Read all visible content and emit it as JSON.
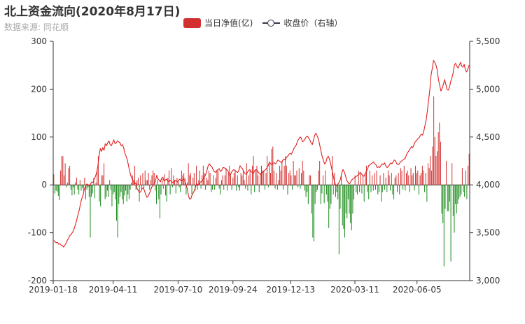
{
  "chart_data": {
    "type": "bar",
    "title": "北上资金流向(2020年8月17日)",
    "subtitle": "数据来源: 同花顺",
    "x_range": [
      "2019-01-18",
      "2020-08-17"
    ],
    "x_tick_labels": [
      "2019-01-18",
      "2019-04-11",
      "2019-07-10",
      "2019-09-24",
      "2019-12-13",
      "2020-03-11",
      "2020-06-05"
    ],
    "y_left": {
      "min": -200,
      "max": 300,
      "ticks": [
        "300",
        "200",
        "100",
        "0",
        "-100",
        "-200"
      ]
    },
    "y_right": {
      "min": 3000,
      "max": 5500,
      "ticks": [
        "5,500",
        "5,000",
        "4,500",
        "4,000",
        "3,500",
        "3,000"
      ]
    },
    "series": [
      {
        "name": "当日净值(亿)",
        "type": "bar",
        "positive_color": "#d32f2f",
        "negative_color": "#1a8a1a",
        "values": [
          22,
          -18,
          -12,
          -14,
          -23,
          -32,
          30,
          60,
          60,
          20,
          45,
          -5,
          5,
          35,
          40,
          -10,
          -22,
          -5,
          -20,
          5,
          15,
          -10,
          -20,
          10,
          -12,
          -6,
          -12,
          15,
          -30,
          -10,
          -5,
          -25,
          -110,
          -25,
          -18,
          15,
          -28,
          5,
          30,
          60,
          -35,
          -45,
          20,
          20,
          45,
          -30,
          -25,
          -12,
          -25,
          10,
          -10,
          -45,
          -20,
          -15,
          -30,
          -75,
          -110,
          -40,
          -25,
          -15,
          -30,
          -40,
          -22,
          -12,
          -35,
          -20,
          -30,
          -10,
          5,
          20,
          10,
          40,
          -10,
          10,
          15,
          -35,
          20,
          -10,
          25,
          -8,
          30,
          10,
          10,
          25,
          -10,
          10,
          20,
          30,
          25,
          -12,
          -40,
          10,
          -30,
          -70,
          -20,
          12,
          -8,
          22,
          -22,
          -35,
          15,
          30,
          -20,
          35,
          -5,
          20,
          10,
          -18,
          15,
          10,
          -5,
          -15,
          30,
          20,
          25,
          15,
          -20,
          5,
          45,
          20,
          25,
          -20,
          15,
          25,
          -12,
          40,
          -10,
          10,
          30,
          -8,
          20,
          40,
          25,
          -10,
          15,
          10,
          30,
          25,
          -15,
          -10,
          20,
          -10,
          15,
          30,
          30,
          -8,
          -20,
          10,
          20,
          -10,
          20,
          35,
          -12,
          25,
          40,
          20,
          -10,
          15,
          25,
          30,
          -12,
          20,
          -5,
          -12,
          25,
          20,
          30,
          10,
          -8,
          45,
          -12,
          20,
          30,
          -20,
          40,
          60,
          -15,
          30,
          40,
          20,
          -15,
          25,
          40,
          30,
          30,
          -10,
          25,
          60,
          -5,
          45,
          25,
          75,
          80,
          30,
          -8,
          25,
          -10,
          10,
          40,
          30,
          50,
          -10,
          40,
          60,
          40,
          -20,
          25,
          30,
          20,
          -10,
          50,
          20,
          20,
          30,
          -5,
          35,
          -8,
          25,
          50,
          30,
          -12,
          -25,
          -15,
          -40,
          20,
          20,
          -60,
          -110,
          -118,
          -40,
          -15,
          -10,
          30,
          50,
          -40,
          -18,
          20,
          -38,
          30,
          -20,
          -35,
          -90,
          -50,
          -40,
          60,
          -20,
          25,
          -25,
          -15,
          -30,
          -145,
          -50,
          20,
          -85,
          -92,
          -110,
          -60,
          -70,
          -30,
          -60,
          -80,
          -95,
          -60,
          -30,
          20,
          -15,
          -20,
          30,
          -15,
          25,
          -18,
          20,
          -35,
          25,
          40,
          -15,
          -30,
          30,
          -15,
          20,
          -12,
          25,
          -10,
          30,
          -20,
          -15,
          20,
          -35,
          -15,
          25,
          -10,
          15,
          -15,
          30,
          20,
          -12,
          25,
          -20,
          -30,
          15,
          20,
          -15,
          25,
          -20,
          35,
          30,
          -10,
          40,
          -12,
          25,
          30,
          20,
          -15,
          35,
          20,
          25,
          -12,
          40,
          25,
          30,
          -20,
          20,
          25,
          40,
          30,
          -15,
          25,
          -35,
          45,
          35,
          60,
          30,
          80,
          185,
          100,
          60,
          70,
          110,
          130,
          90,
          -60,
          -80,
          -170,
          -50,
          50,
          -55,
          -55,
          -35,
          -160,
          45,
          -65,
          -100,
          -40,
          -60,
          -40,
          -30,
          -25,
          -20,
          35,
          -15,
          -25,
          30,
          -30,
          40,
          65
        ]
      },
      {
        "name": "收盘价（右轴）",
        "type": "line",
        "color": "#e02020",
        "values": [
          3420,
          3405,
          3395,
          3400,
          3380,
          3385,
          3370,
          3365,
          3350,
          3370,
          3390,
          3420,
          3440,
          3470,
          3480,
          3500,
          3520,
          3560,
          3600,
          3650,
          3700,
          3750,
          3820,
          3860,
          3900,
          3960,
          3990,
          4010,
          4000,
          3985,
          4010,
          4030,
          4025,
          4060,
          4090,
          4130,
          4200,
          4310,
          4380,
          4350,
          4390,
          4360,
          4430,
          4410,
          4440,
          4460,
          4420,
          4410,
          4440,
          4470,
          4430,
          4440,
          4460,
          4450,
          4440,
          4410,
          4420,
          4390,
          4330,
          4300,
          4260,
          4200,
          4140,
          4090,
          4060,
          4040,
          4010,
          4020,
          3960,
          3940,
          3920,
          3930,
          3960,
          3970,
          3940,
          3900,
          3870,
          3880,
          3910,
          3940,
          3980,
          3990,
          4010,
          4040,
          4100,
          4060,
          4050,
          4030,
          4070,
          4080,
          4040,
          4050,
          4060,
          4040,
          4030,
          4050,
          4040,
          4020,
          4030,
          4050,
          4040,
          4030,
          4050,
          4060,
          4040,
          4050,
          4060,
          4040,
          4000,
          3960,
          3880,
          3850,
          3860,
          3900,
          3920,
          3950,
          3990,
          4010,
          4000,
          4020,
          4030,
          4040,
          4060,
          4080,
          4110,
          4150,
          4200,
          4220,
          4200,
          4190,
          4160,
          4140,
          4130,
          4150,
          4160,
          4170,
          4140,
          4150,
          4180,
          4180,
          4170,
          4160,
          4150,
          4120,
          4100,
          4130,
          4150,
          4160,
          4150,
          4140,
          4130,
          4150,
          4200,
          4180,
          4170,
          4140,
          4120,
          4110,
          4130,
          4150,
          4160,
          4140,
          4130,
          4120,
          4150,
          4160,
          4150,
          4130,
          4120,
          4110,
          4130,
          4140,
          4150,
          4160,
          4180,
          4200,
          4240,
          4220,
          4210,
          4230,
          4230,
          4220,
          4240,
          4260,
          4250,
          4240,
          4230,
          4260,
          4270,
          4260,
          4290,
          4300,
          4320,
          4330,
          4320,
          4350,
          4380,
          4400,
          4420,
          4460,
          4480,
          4500,
          4490,
          4450,
          4460,
          4480,
          4500,
          4510,
          4490,
          4470,
          4440,
          4420,
          4470,
          4520,
          4540,
          4510,
          4480,
          4420,
          4360,
          4300,
          4260,
          4220,
          4230,
          4280,
          4300,
          4270,
          4220,
          4160,
          4100,
          4040,
          4000,
          3990,
          4010,
          4030,
          4060,
          4120,
          4160,
          4140,
          4100,
          4050,
          4030,
          4010,
          4020,
          4050,
          4060,
          4070,
          4080,
          4090,
          4100,
          4110,
          4130,
          4120,
          4100,
          4090,
          4110,
          4140,
          4160,
          4200,
          4210,
          4220,
          4230,
          4240,
          4220,
          4210,
          4180,
          4190,
          4180,
          4200,
          4220,
          4210,
          4230,
          4200,
          4180,
          4190,
          4210,
          4230,
          4220,
          4240,
          4260,
          4250,
          4220,
          4210,
          4220,
          4240,
          4250,
          4260,
          4270,
          4280,
          4320,
          4340,
          4360,
          4380,
          4400,
          4390,
          4420,
          4450,
          4460,
          4480,
          4490,
          4510,
          4530,
          4520,
          4560,
          4620,
          4680,
          4780,
          4890,
          5000,
          5150,
          5220,
          5300,
          5280,
          5250,
          5200,
          5100,
          5040,
          4980,
          5010,
          5050,
          5100,
          5050,
          5000,
          4990,
          5020,
          5080,
          5120,
          5170,
          5250,
          5270,
          5240,
          5220,
          5250,
          5280,
          5240,
          5230,
          5260,
          5200,
          5180,
          5210,
          5250
        ]
      }
    ],
    "grid": false,
    "legend_position": "top-center"
  }
}
